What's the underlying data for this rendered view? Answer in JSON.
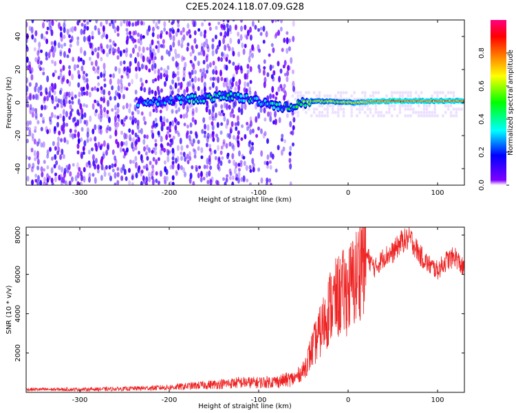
{
  "title": "C2E5.2024.118.07.09.G28",
  "chart_data": [
    {
      "type": "heatmap",
      "xlabel": "Height of straight line (km)",
      "ylabel": "Frequency (Hz)",
      "xlim": [
        -360,
        130
      ],
      "ylim": [
        -50,
        50
      ],
      "xticks": [
        -300,
        -200,
        -100,
        0,
        100
      ],
      "yticks": [
        -40,
        -20,
        0,
        20,
        40
      ],
      "colorbar": {
        "label": "Normalized spectral amplitude",
        "range": [
          0.0,
          1.0
        ],
        "ticks": [
          "0.0",
          "0.2",
          "0.4",
          "0.6",
          "0.8"
        ],
        "colormap": [
          "#ffffff",
          "#7f00ff",
          "#0000ff",
          "#00ffff",
          "#00ff00",
          "#ffff00",
          "#ff8000",
          "#ff0000",
          "#ff0080"
        ]
      },
      "signal_band": {
        "description_points": [
          {
            "x": -235,
            "center": 0,
            "amplitude": 0.3
          },
          {
            "x": -180,
            "center": 2,
            "amplitude": 0.35
          },
          {
            "x": -130,
            "center": 4,
            "amplitude": 0.4
          },
          {
            "x": -100,
            "center": 1,
            "amplitude": 0.35
          },
          {
            "x": -70,
            "center": -3,
            "amplitude": 0.4
          },
          {
            "x": -40,
            "center": 1,
            "amplitude": 0.6
          },
          {
            "x": 0,
            "center": 0,
            "amplitude": 0.65
          },
          {
            "x": 50,
            "center": 1,
            "amplitude": 0.85
          },
          {
            "x": 100,
            "center": 1,
            "amplitude": 0.8
          },
          {
            "x": 130,
            "center": 1,
            "amplitude": 0.8
          }
        ]
      }
    },
    {
      "type": "line",
      "xlabel": "Height of straight line (km)",
      "ylabel": "SNR (10 * v/v)",
      "xlim": [
        -360,
        130
      ],
      "ylim": [
        0,
        8400
      ],
      "xticks": [
        -300,
        -200,
        -100,
        0,
        100
      ],
      "yticks": [
        2000,
        4000,
        6000,
        8000
      ],
      "color": "#ee2222",
      "series": [
        {
          "x": [
            -360,
            -300,
            -250,
            -200,
            -150,
            -120,
            -100,
            -80,
            -60,
            -50,
            -40,
            -30,
            -20,
            -10,
            0,
            10,
            15,
            20,
            30,
            40,
            50,
            60,
            70,
            80,
            90,
            100,
            110,
            120,
            130
          ],
          "values": [
            150,
            150,
            180,
            250,
            400,
            500,
            500,
            550,
            700,
            1100,
            2200,
            3200,
            4400,
            4900,
            5200,
            5900,
            7000,
            7000,
            6300,
            6900,
            7100,
            7700,
            7800,
            7000,
            6500,
            6200,
            6700,
            6900,
            6200
          ]
        }
      ]
    }
  ]
}
